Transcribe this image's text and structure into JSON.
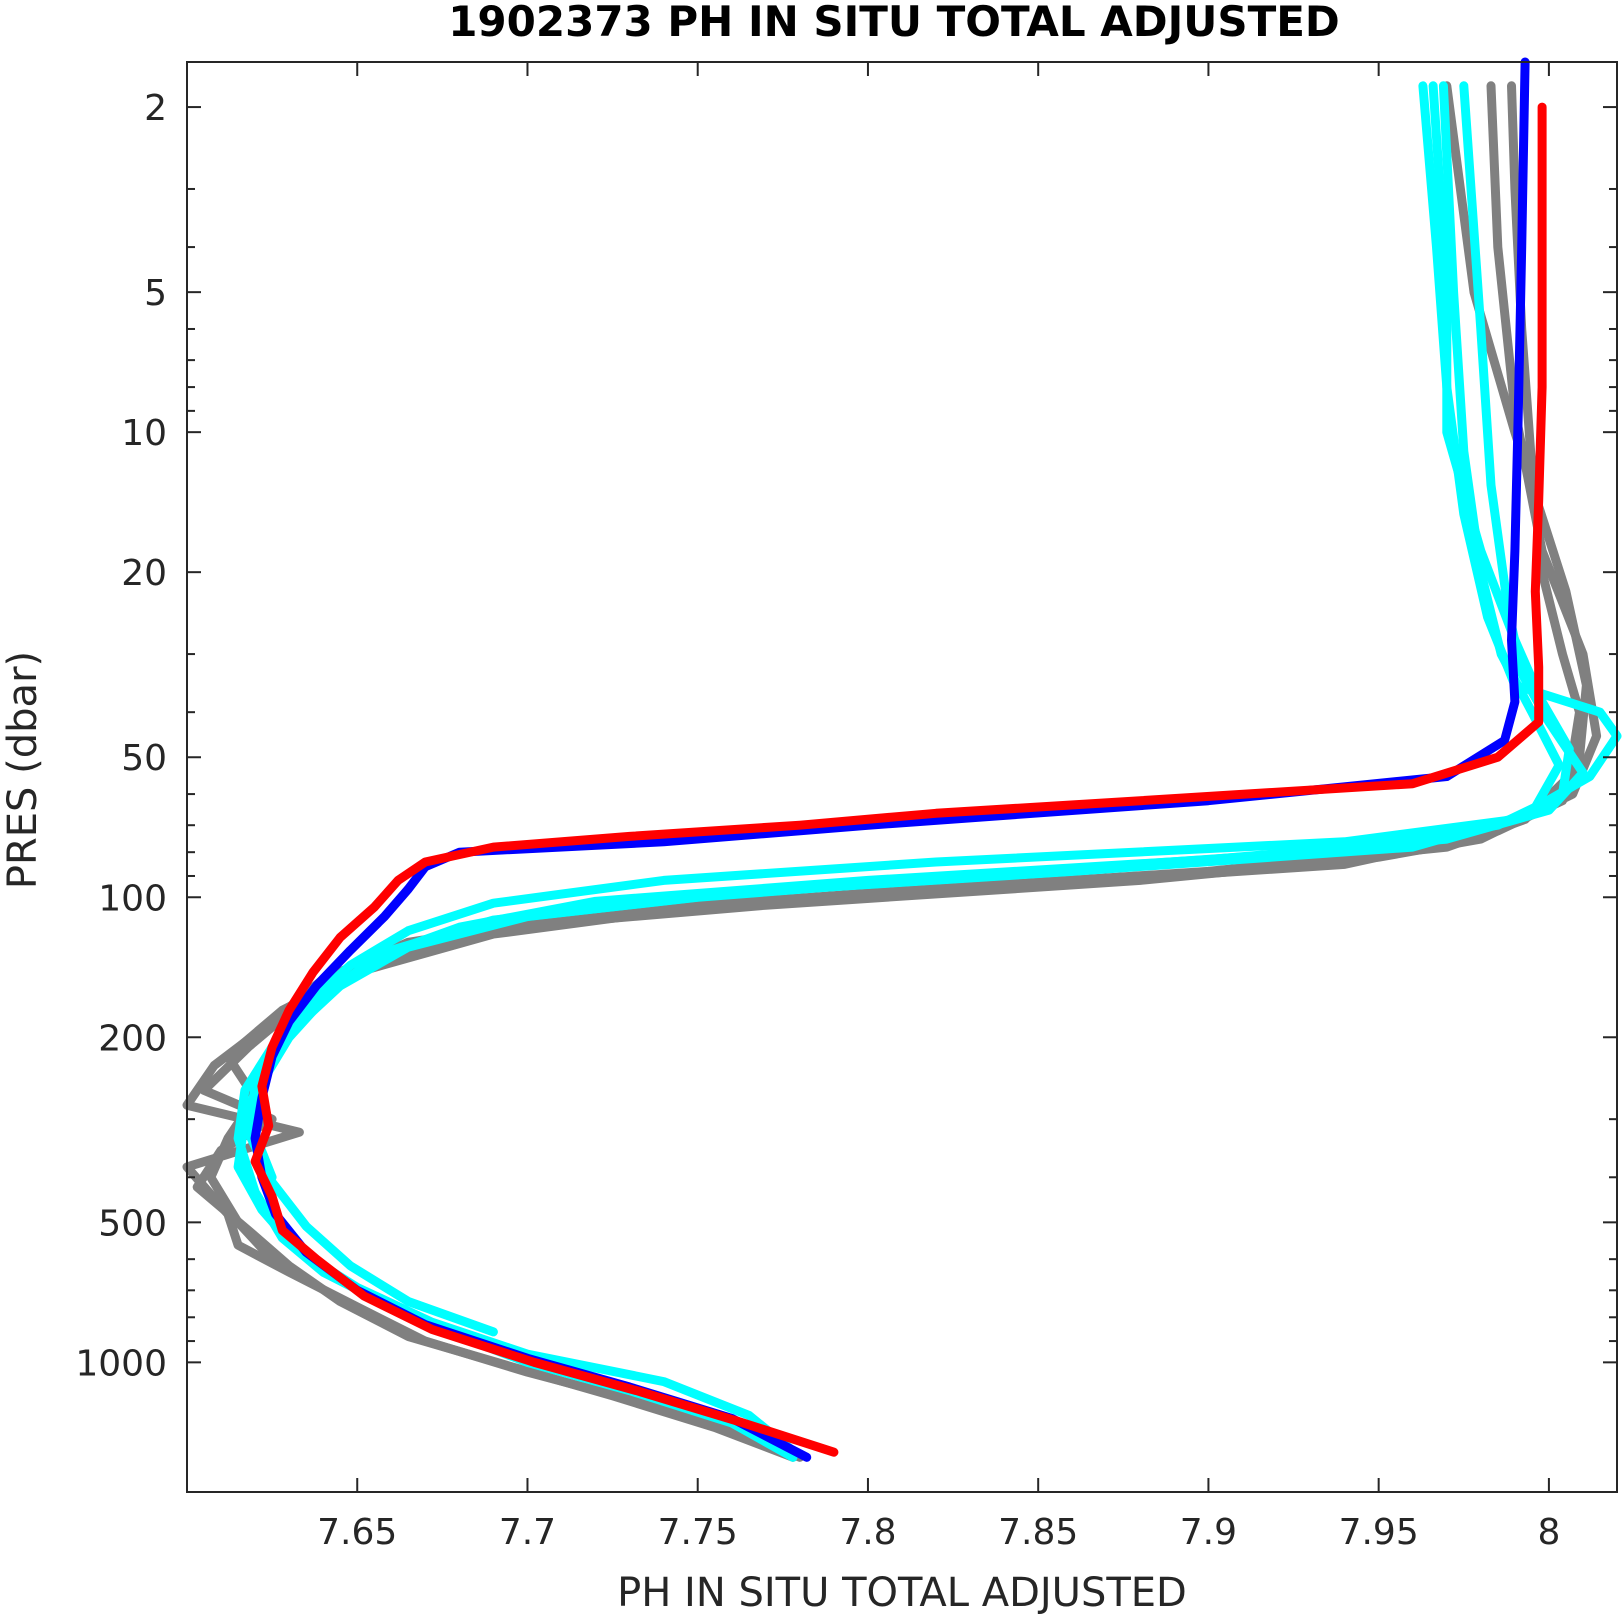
{
  "chart_data": {
    "type": "line",
    "title": "1902373  PH IN SITU TOTAL ADJUSTED",
    "xlabel": "PH IN SITU TOTAL ADJUSTED",
    "ylabel": "PRES (dbar)",
    "xlim": [
      7.6,
      8.02
    ],
    "ylim": [
      1.6,
      1900
    ],
    "y_scale": "log",
    "y_reversed": true,
    "grid": false,
    "x_ticks": [
      7.65,
      7.7,
      7.75,
      7.8,
      7.85,
      7.9,
      7.95,
      8
    ],
    "x_tick_labels": [
      "7.65",
      "7.7",
      "7.75",
      "7.8",
      "7.85",
      "7.9",
      "7.95",
      "8"
    ],
    "y_ticks": [
      2,
      5,
      10,
      20,
      50,
      100,
      200,
      500,
      1000
    ],
    "y_tick_labels": [
      "2",
      "5",
      "10",
      "20",
      "50",
      "100",
      "200",
      "500",
      "1000"
    ],
    "colors": {
      "gray": "#808080",
      "cyan": "#00ffff",
      "blue": "#0000ff",
      "red": "#ff0000"
    },
    "series": [
      {
        "color": "gray",
        "points": [
          [
            7.989,
            1.8
          ],
          [
            7.99,
            3
          ],
          [
            7.992,
            6
          ],
          [
            7.995,
            12
          ],
          [
            7.998,
            20
          ],
          [
            8.004,
            30
          ],
          [
            8.009,
            40
          ],
          [
            8.006,
            55
          ],
          [
            7.993,
            68
          ],
          [
            7.97,
            78
          ],
          [
            7.9,
            88
          ],
          [
            7.8,
            98
          ],
          [
            7.72,
            108
          ],
          [
            7.665,
            125
          ],
          [
            7.64,
            150
          ],
          [
            7.625,
            185
          ],
          [
            7.608,
            230
          ],
          [
            7.6,
            280
          ],
          [
            7.633,
            320
          ],
          [
            7.6,
            380
          ],
          [
            7.612,
            480
          ],
          [
            7.615,
            560
          ],
          [
            7.63,
            640
          ],
          [
            7.65,
            760
          ],
          [
            7.67,
            900
          ],
          [
            7.7,
            1050
          ],
          [
            7.73,
            1200
          ],
          [
            7.76,
            1400
          ],
          [
            7.78,
            1600
          ]
        ]
      },
      {
        "color": "gray",
        "points": [
          [
            7.983,
            1.8
          ],
          [
            7.985,
            4
          ],
          [
            7.99,
            9
          ],
          [
            7.998,
            18
          ],
          [
            8.01,
            30
          ],
          [
            8.014,
            45
          ],
          [
            8.007,
            60
          ],
          [
            7.98,
            75
          ],
          [
            7.95,
            82
          ],
          [
            7.88,
            92
          ],
          [
            7.77,
            104
          ],
          [
            7.7,
            115
          ],
          [
            7.66,
            135
          ],
          [
            7.635,
            165
          ],
          [
            7.618,
            210
          ],
          [
            7.605,
            260
          ],
          [
            7.625,
            300
          ],
          [
            7.61,
            350
          ],
          [
            7.603,
            420
          ],
          [
            7.618,
            520
          ],
          [
            7.63,
            620
          ],
          [
            7.645,
            740
          ],
          [
            7.665,
            880
          ],
          [
            7.695,
            1020
          ],
          [
            7.725,
            1180
          ],
          [
            7.755,
            1380
          ],
          [
            7.778,
            1600
          ]
        ]
      },
      {
        "color": "gray",
        "points": [
          [
            7.97,
            1.8
          ],
          [
            7.978,
            5
          ],
          [
            7.99,
            10
          ],
          [
            8.005,
            22
          ],
          [
            8.011,
            35
          ],
          [
            8.009,
            50
          ],
          [
            8.004,
            62
          ],
          [
            7.985,
            72
          ],
          [
            7.94,
            85
          ],
          [
            7.84,
            95
          ],
          [
            7.75,
            105
          ],
          [
            7.69,
            120
          ],
          [
            7.65,
            145
          ],
          [
            7.628,
            175
          ],
          [
            7.612,
            220
          ],
          [
            7.62,
            270
          ],
          [
            7.612,
            330
          ],
          [
            7.607,
            400
          ],
          [
            7.615,
            500
          ],
          [
            7.625,
            600
          ]
        ]
      },
      {
        "color": "cyan",
        "points": [
          [
            7.963,
            1.8
          ],
          [
            7.967,
            4
          ],
          [
            7.97,
            8
          ],
          [
            7.975,
            15
          ],
          [
            7.982,
            25
          ],
          [
            7.99,
            35
          ],
          [
            8.015,
            40
          ],
          [
            8.02,
            45
          ],
          [
            8.012,
            55
          ],
          [
            7.99,
            68
          ],
          [
            7.94,
            76
          ],
          [
            7.82,
            84
          ],
          [
            7.74,
            92
          ],
          [
            7.69,
            103
          ],
          [
            7.665,
            118
          ],
          [
            7.648,
            140
          ],
          [
            7.635,
            170
          ],
          [
            7.625,
            210
          ],
          [
            7.617,
            260
          ],
          [
            7.615,
            330
          ],
          [
            7.62,
            430
          ],
          [
            7.628,
            540
          ],
          [
            7.64,
            640
          ],
          [
            7.66,
            760
          ],
          [
            7.68,
            880
          ],
          [
            7.7,
            1000
          ],
          [
            7.73,
            1150
          ],
          [
            7.76,
            1350
          ],
          [
            7.778,
            1600
          ]
        ]
      },
      {
        "color": "cyan",
        "points": [
          [
            7.969,
            1.8
          ],
          [
            7.972,
            5
          ],
          [
            7.975,
            11
          ],
          [
            7.98,
            20
          ],
          [
            7.986,
            30
          ],
          [
            7.995,
            40
          ],
          [
            8.003,
            52
          ],
          [
            7.995,
            66
          ],
          [
            7.96,
            78
          ],
          [
            7.86,
            88
          ],
          [
            7.76,
            98
          ],
          [
            7.7,
            110
          ],
          [
            7.665,
            128
          ],
          [
            7.645,
            155
          ],
          [
            7.632,
            190
          ],
          [
            7.622,
            240
          ],
          [
            7.617,
            300
          ],
          [
            7.615,
            380
          ],
          [
            7.622,
            470
          ],
          [
            7.632,
            570
          ],
          [
            7.65,
            690
          ],
          [
            7.672,
            820
          ],
          [
            7.7,
            960
          ],
          [
            7.74,
            1100
          ],
          [
            7.765,
            1300
          ],
          [
            7.778,
            1550
          ]
        ]
      },
      {
        "color": "cyan",
        "points": [
          [
            7.975,
            1.8
          ],
          [
            7.98,
            6
          ],
          [
            7.983,
            13
          ],
          [
            7.988,
            24
          ],
          [
            7.992,
            33
          ],
          [
            8.0,
            42
          ],
          [
            8.01,
            54
          ],
          [
            8.0,
            65
          ],
          [
            7.97,
            75
          ],
          [
            7.9,
            83
          ],
          [
            7.8,
            92
          ],
          [
            7.72,
            102
          ],
          [
            7.68,
            116
          ],
          [
            7.655,
            135
          ],
          [
            7.64,
            165
          ],
          [
            7.628,
            205
          ],
          [
            7.62,
            255
          ],
          [
            7.618,
            320
          ],
          [
            7.625,
            410
          ],
          [
            7.635,
            510
          ],
          [
            7.648,
            620
          ],
          [
            7.665,
            740
          ],
          [
            7.69,
            860
          ]
        ]
      },
      {
        "color": "cyan",
        "points": [
          [
            7.966,
            1.8
          ],
          [
            7.97,
            5
          ],
          [
            7.97,
            10
          ],
          [
            7.98,
            18
          ],
          [
            7.99,
            28
          ],
          [
            7.998,
            38
          ],
          [
            8.006,
            48
          ],
          [
            8.004,
            60
          ],
          [
            7.985,
            70
          ],
          [
            7.93,
            80
          ],
          [
            7.83,
            90
          ],
          [
            7.75,
            100
          ],
          [
            7.69,
            112
          ],
          [
            7.66,
            130
          ],
          [
            7.642,
            160
          ],
          [
            7.63,
            200
          ],
          [
            7.622,
            250
          ],
          [
            7.619,
            310
          ],
          [
            7.625,
            400
          ]
        ]
      },
      {
        "color": "blue",
        "points": [
          [
            7.993,
            1.6
          ],
          [
            7.992,
            4
          ],
          [
            7.991,
            9
          ],
          [
            7.99,
            18
          ],
          [
            7.989,
            28
          ],
          [
            7.99,
            38
          ],
          [
            7.987,
            46
          ],
          [
            7.97,
            55
          ],
          [
            7.9,
            62
          ],
          [
            7.8,
            70
          ],
          [
            7.74,
            76
          ],
          [
            7.68,
            80
          ],
          [
            7.67,
            86
          ],
          [
            7.665,
            96
          ],
          [
            7.658,
            110
          ],
          [
            7.648,
            130
          ],
          [
            7.638,
            155
          ],
          [
            7.63,
            185
          ],
          [
            7.625,
            220
          ],
          [
            7.622,
            270
          ],
          [
            7.62,
            330
          ],
          [
            7.622,
            400
          ],
          [
            7.626,
            480
          ],
          [
            7.635,
            580
          ],
          [
            7.65,
            700
          ],
          [
            7.67,
            830
          ],
          [
            7.7,
            980
          ],
          [
            7.73,
            1130
          ],
          [
            7.76,
            1320
          ],
          [
            7.782,
            1600
          ]
        ]
      },
      {
        "color": "red",
        "points": [
          [
            7.998,
            2
          ],
          [
            7.998,
            4
          ],
          [
            7.998,
            8
          ],
          [
            7.997,
            14
          ],
          [
            7.996,
            22
          ],
          [
            7.997,
            32
          ],
          [
            7.997,
            42
          ],
          [
            7.985,
            50
          ],
          [
            7.96,
            57
          ],
          [
            7.88,
            62
          ],
          [
            7.82,
            66
          ],
          [
            7.78,
            70
          ],
          [
            7.73,
            74
          ],
          [
            7.69,
            78
          ],
          [
            7.67,
            84
          ],
          [
            7.662,
            92
          ],
          [
            7.655,
            105
          ],
          [
            7.645,
            122
          ],
          [
            7.637,
            145
          ],
          [
            7.63,
            175
          ],
          [
            7.625,
            210
          ],
          [
            7.622,
            255
          ],
          [
            7.624,
            310
          ],
          [
            7.62,
            370
          ],
          [
            7.625,
            440
          ],
          [
            7.628,
            520
          ],
          [
            7.638,
            600
          ],
          [
            7.652,
            720
          ],
          [
            7.672,
            850
          ],
          [
            7.702,
            1000
          ],
          [
            7.732,
            1150
          ],
          [
            7.762,
            1340
          ],
          [
            7.79,
            1560
          ]
        ]
      }
    ]
  }
}
